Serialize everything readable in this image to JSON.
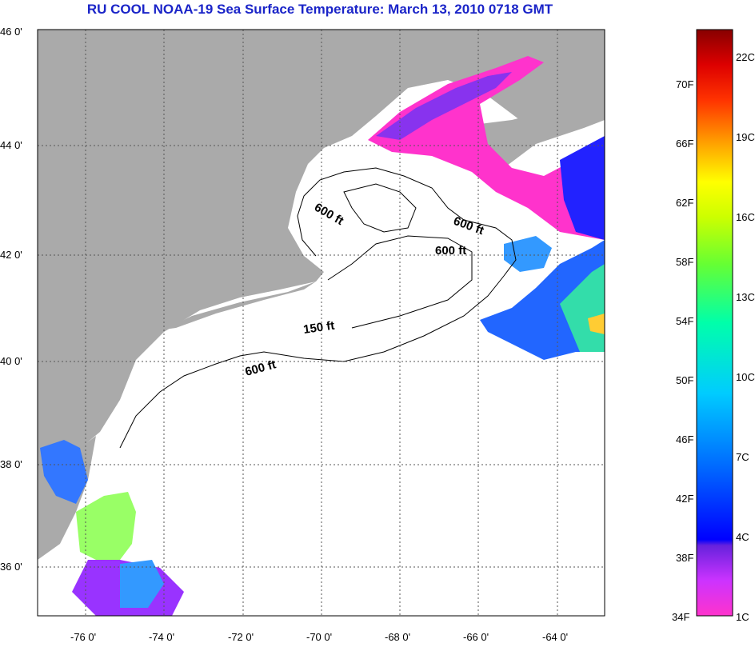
{
  "title": "RU COOL  NOAA-19  Sea Surface Temperature:  March 13, 2010 0718 GMT",
  "map": {
    "lat_ticks": [
      "46 0'",
      "44 0'",
      "42 0'",
      "40 0'",
      "38 0'",
      "36 0'"
    ],
    "lon_ticks": [
      "-76 0'",
      "-74 0'",
      "-72 0'",
      "-70 0'",
      "-68 0'",
      "-66 0'",
      "-64 0'"
    ],
    "contour_labels": [
      "600 ft",
      "600 ft",
      "600 ft",
      "150 ft",
      "600 ft"
    ],
    "colors": {
      "land": "#aaaaaa",
      "no_data": "#ffffff",
      "grid": "#555555"
    }
  },
  "colorbar": {
    "f_labels": [
      "70F",
      "66F",
      "62F",
      "58F",
      "54F",
      "50F",
      "46F",
      "42F",
      "38F",
      "34F"
    ],
    "c_labels": [
      "22C",
      "19C",
      "16C",
      "13C",
      "10C",
      "7C",
      "4C",
      "1C"
    ]
  }
}
